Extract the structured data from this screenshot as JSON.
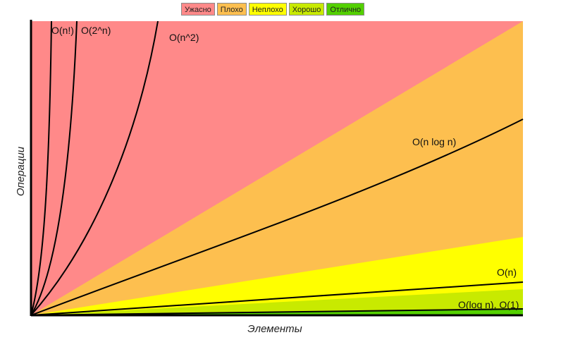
{
  "legend": [
    {
      "label": "Ужасно",
      "color": "#ff8989"
    },
    {
      "label": "Плохо",
      "color": "#fdbf4f"
    },
    {
      "label": "Неплохо",
      "color": "#ffff00"
    },
    {
      "label": "Хорошо",
      "color": "#c8ea00"
    },
    {
      "label": "Отлично",
      "color": "#53d000"
    }
  ],
  "chart_data": {
    "type": "line",
    "xlabel": "Элементы",
    "ylabel": "Операции",
    "x_scale": "linear",
    "y_scale": "linear",
    "grid": false,
    "legend_position": "top-center",
    "series": [
      {
        "name": "O(n!)",
        "function": "factorial"
      },
      {
        "name": "O(2^n)",
        "function": "exponential"
      },
      {
        "name": "O(n^2)",
        "function": "quadratic"
      },
      {
        "name": "O(n log n)",
        "function": "linearithmic"
      },
      {
        "name": "O(n)",
        "function": "linear"
      },
      {
        "name": "O(log n), O(1)",
        "function": "logarithmic_constant"
      }
    ],
    "regions": [
      {
        "label": "Ужасно",
        "color": "#ff8989"
      },
      {
        "label": "Плохо",
        "color": "#fdbf4f"
      },
      {
        "label": "Неплохо",
        "color": "#ffff00"
      },
      {
        "label": "Хорошо",
        "color": "#c8ea00"
      },
      {
        "label": "Отлично",
        "color": "#53d000"
      }
    ]
  }
}
